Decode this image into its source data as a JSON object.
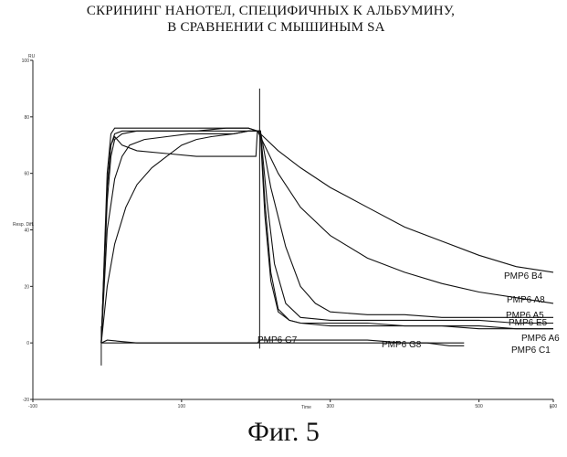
{
  "chart_data": {
    "type": "line",
    "title_lines": [
      "СКРИНИНГ НАНОТЕЛ, СПЕЦИФИЧНЫХ К АЛЬБУМИНУ,",
      "В СРАВНЕНИИ С МЫШИНЫМ SA"
    ],
    "ylabel": "Resp. Diff.",
    "xlabel": "Time",
    "yunit": "RU",
    "xunit": "s",
    "xlim": [
      -100,
      600
    ],
    "ylim": [
      -20,
      100
    ],
    "xticks": [
      "-100",
      "100",
      "300",
      "500",
      "600"
    ],
    "yticks": [
      "-20",
      "0",
      "20",
      "40",
      "60",
      "80",
      "100"
    ],
    "grid": false,
    "series": [
      {
        "name": "PMP6 B4",
        "x": [
          -8,
          0,
          10,
          25,
          40,
          60,
          80,
          100,
          120,
          140,
          170,
          190,
          202,
          206,
          230,
          260,
          300,
          350,
          400,
          450,
          500,
          550,
          600
        ],
        "y": [
          0,
          20,
          35,
          48,
          56,
          62,
          66,
          70,
          72,
          73,
          74,
          75,
          75,
          74,
          68,
          62,
          55,
          48,
          41,
          36,
          31,
          27,
          25
        ]
      },
      {
        "name": "PMP6 A8",
        "x": [
          -8,
          0,
          10,
          20,
          30,
          50,
          80,
          110,
          140,
          170,
          190,
          202,
          206,
          230,
          260,
          300,
          350,
          400,
          450,
          500,
          550,
          600
        ],
        "y": [
          0,
          40,
          58,
          66,
          70,
          72,
          73,
          74,
          74,
          74,
          75,
          75,
          73,
          60,
          48,
          38,
          30,
          25,
          21,
          18,
          16,
          14
        ]
      },
      {
        "name": "PMP6 A5",
        "x": [
          -8,
          0,
          5,
          10,
          20,
          40,
          80,
          120,
          160,
          190,
          202,
          206,
          220,
          240,
          260,
          280,
          300,
          350,
          400,
          450,
          500,
          550,
          600
        ],
        "y": [
          0,
          50,
          66,
          72,
          74,
          75,
          75,
          75,
          76,
          76,
          75,
          75,
          55,
          34,
          20,
          14,
          11,
          10,
          10,
          9,
          9,
          9,
          9
        ]
      },
      {
        "name": "PMP6 E5",
        "x": [
          -8,
          0,
          5,
          10,
          20,
          40,
          80,
          120,
          160,
          190,
          202,
          206,
          215,
          225,
          240,
          260,
          300,
          350,
          400,
          450,
          500,
          550,
          600
        ],
        "y": [
          0,
          55,
          70,
          74,
          75,
          75,
          75,
          75,
          75,
          75,
          75,
          75,
          50,
          28,
          14,
          9,
          8,
          8,
          8,
          8,
          8,
          7,
          7
        ]
      },
      {
        "name": "PMP6 A6",
        "x": [
          -8,
          0,
          5,
          10,
          20,
          40,
          80,
          120,
          160,
          200,
          202,
          206,
          212,
          220,
          230,
          245,
          260,
          300,
          350,
          400,
          450,
          500,
          550,
          600
        ],
        "y": [
          0,
          55,
          70,
          73,
          70,
          68,
          67,
          66,
          66,
          66,
          75,
          75,
          50,
          25,
          12,
          8,
          7,
          7,
          7,
          6,
          6,
          6,
          5,
          5
        ]
      },
      {
        "name": "PMP6 C1",
        "x": [
          -8,
          0,
          5,
          10,
          30,
          60,
          100,
          150,
          190,
          202,
          206,
          212,
          220,
          230,
          245,
          260,
          300,
          350,
          400,
          450,
          500,
          550,
          600
        ],
        "y": [
          0,
          60,
          74,
          76,
          76,
          76,
          76,
          76,
          76,
          75,
          74,
          45,
          22,
          11,
          8,
          7,
          6,
          6,
          6,
          6,
          5,
          5,
          5
        ]
      },
      {
        "name": "PMP6 G7",
        "x": [
          -8,
          0,
          40,
          100,
          150,
          202,
          206,
          250,
          300,
          350,
          400,
          450,
          480
        ],
        "y": [
          0,
          1,
          0,
          0,
          0,
          0,
          1,
          1,
          1,
          1,
          0,
          0,
          0
        ]
      },
      {
        "name": "PMP6 G8",
        "x": [
          -8,
          0,
          30,
          80,
          130,
          180,
          202,
          206,
          260,
          320,
          380,
          430,
          460,
          480
        ],
        "y": [
          0,
          0,
          0,
          0,
          0,
          0,
          0,
          0,
          0,
          0,
          0,
          0,
          -1,
          -1
        ]
      }
    ],
    "figure_caption": "Фиг. 5"
  }
}
